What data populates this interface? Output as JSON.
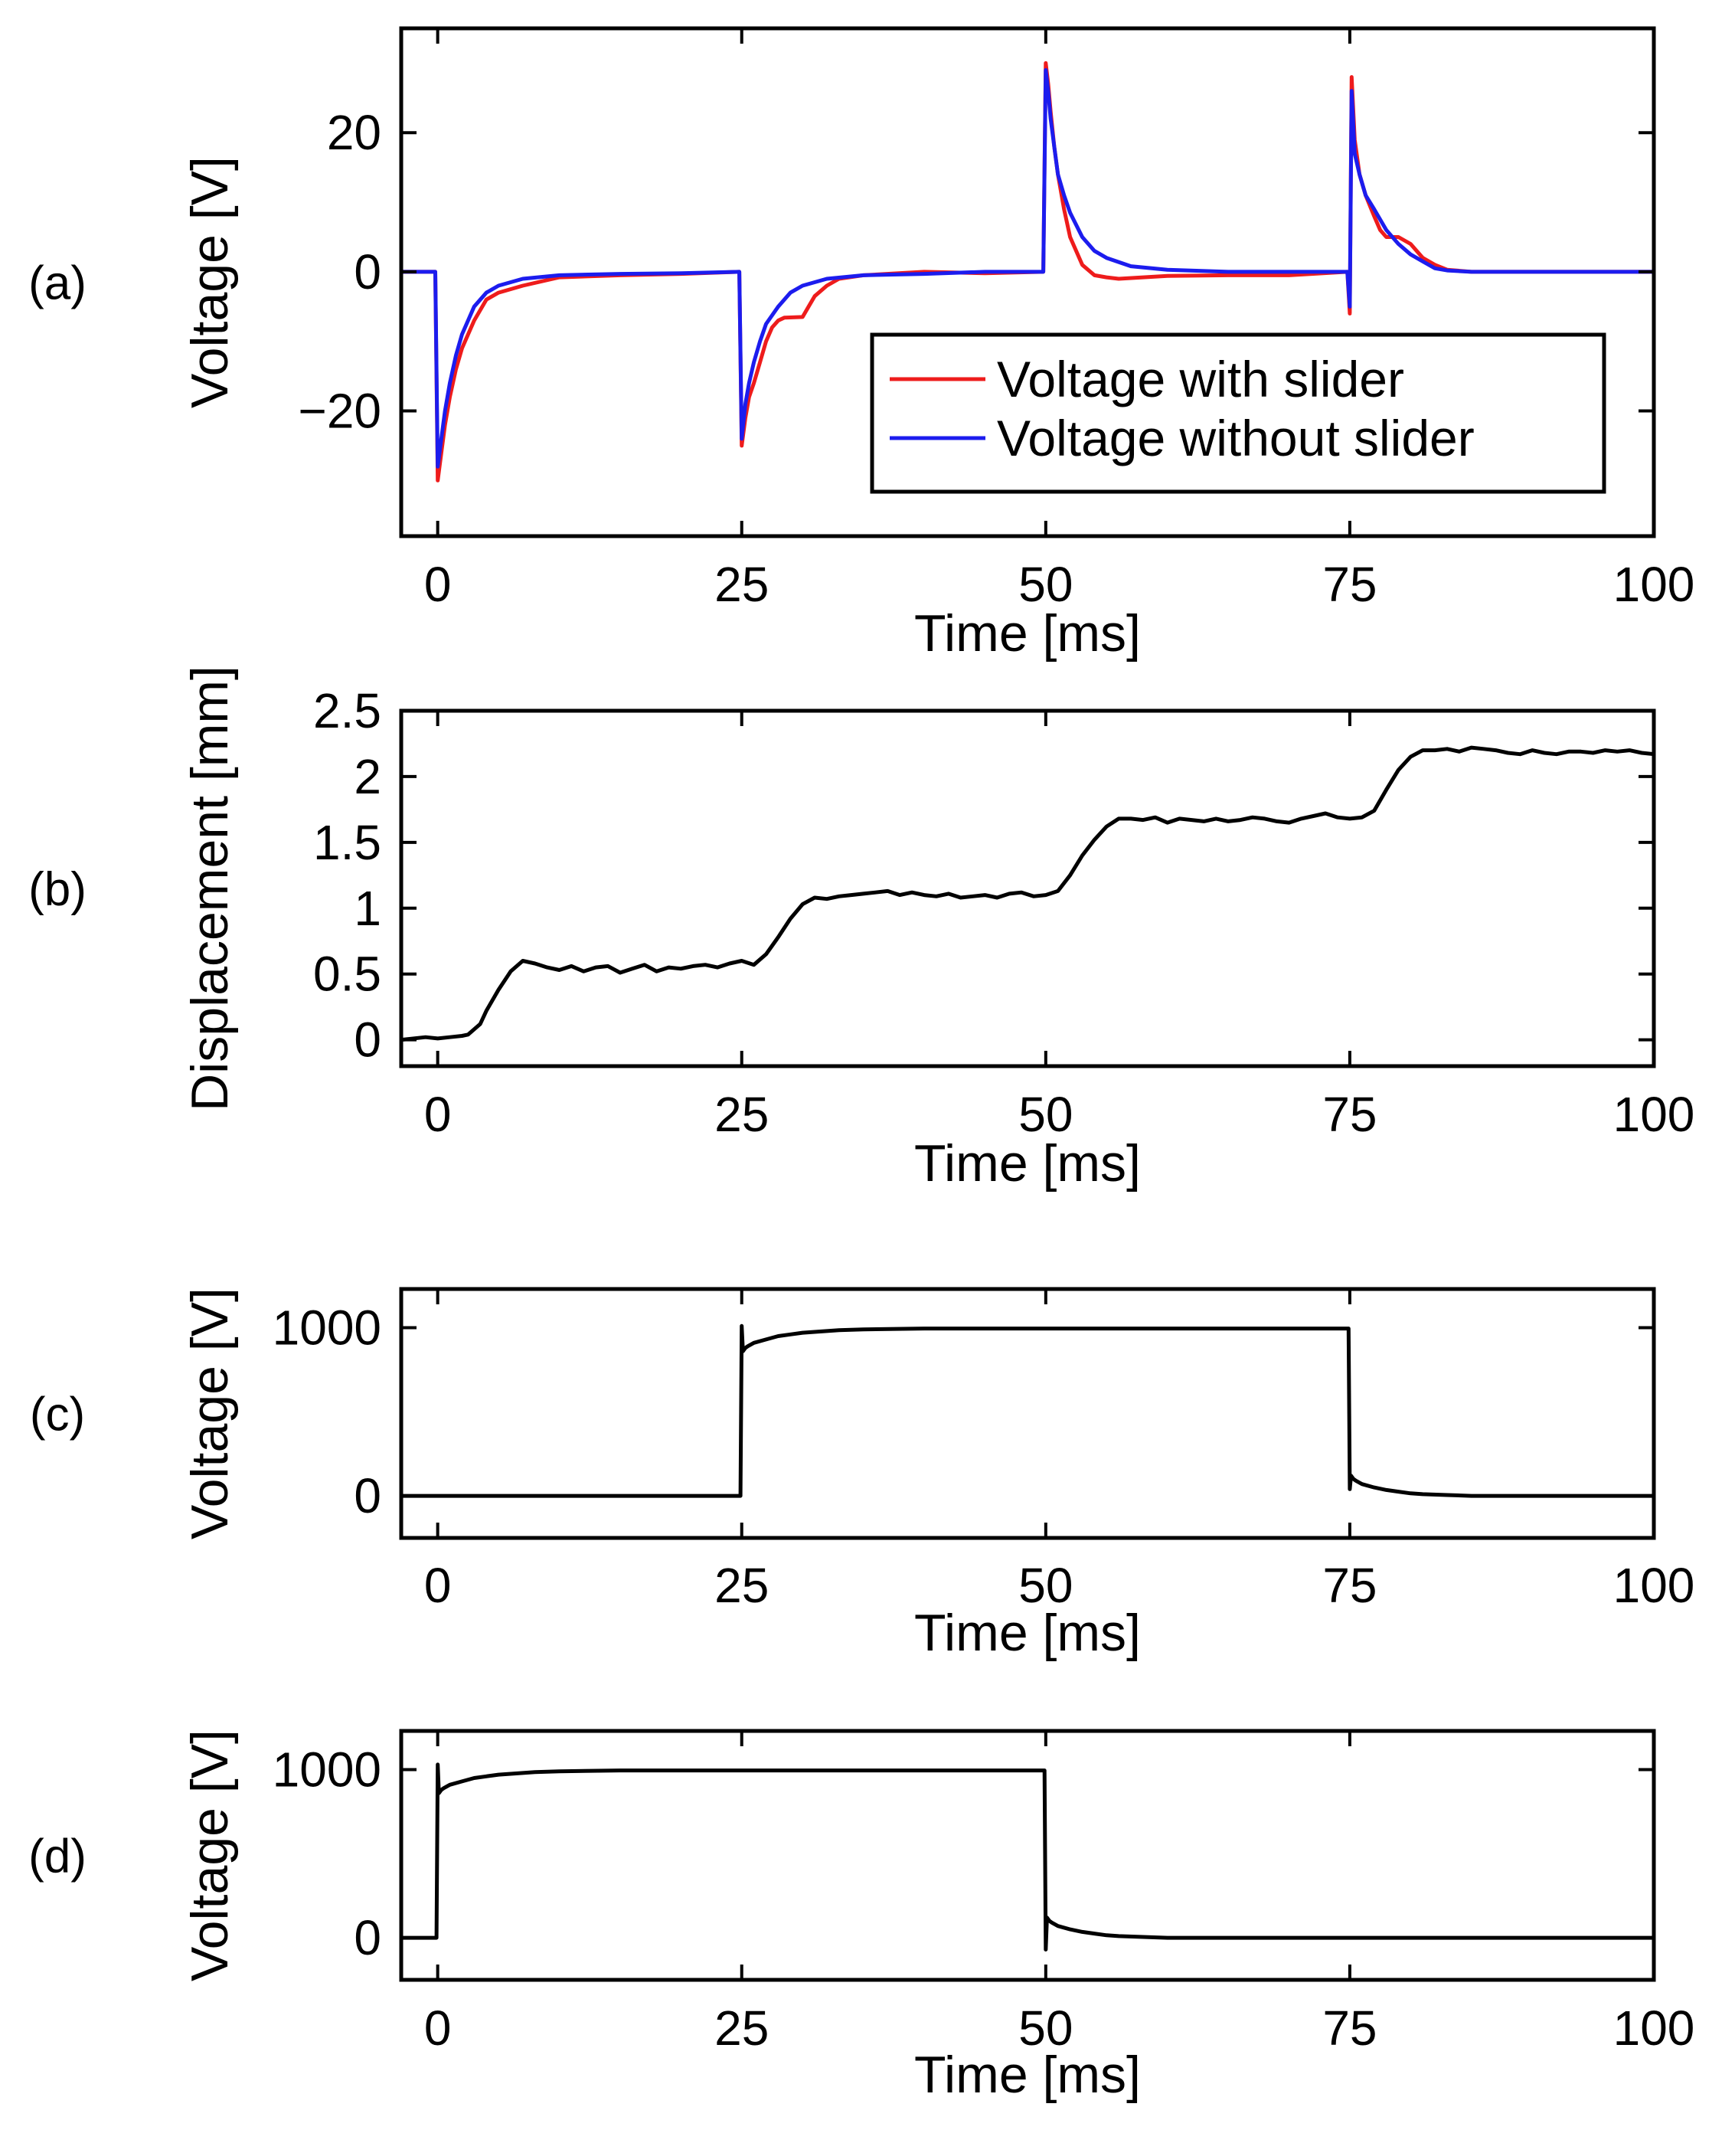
{
  "colors": {
    "with_slider": "#ee1c1c",
    "without_slider": "#1c1cee",
    "trace": "#000000"
  },
  "chart_data": [
    {
      "panel": "(a)",
      "type": "line",
      "xlabel": "Time [ms]",
      "ylabel": "Voltage [V]",
      "xlim": [
        -3,
        100
      ],
      "ylim": [
        -38,
        35
      ],
      "xticks": [
        0,
        25,
        50,
        75,
        100
      ],
      "yticks": [
        -20,
        0,
        20
      ],
      "ytick_labels": [
        "−20",
        "0",
        "20"
      ],
      "legend_position": "bottom-right",
      "series": [
        {
          "name": "Voltage with slider",
          "color_key": "with_slider",
          "x": [
            -3,
            -0.2,
            0,
            0.3,
            0.6,
            1,
            1.5,
            2,
            3,
            4,
            5,
            7,
            10,
            15,
            20,
            24.8,
            25,
            25.3,
            25.6,
            26,
            26.5,
            27,
            27.5,
            28,
            28.5,
            30,
            30.5,
            31,
            32,
            33,
            35,
            40,
            45,
            49.8,
            50,
            50.2,
            50.4,
            50.7,
            51,
            51.5,
            52,
            53,
            54,
            55,
            56,
            58,
            60,
            65,
            70,
            74.8,
            75,
            75.15,
            75.4,
            75.8,
            76.3,
            77,
            77.5,
            78,
            79,
            80,
            81,
            82,
            83,
            85,
            90,
            95,
            100
          ],
          "y": [
            0,
            0,
            -30,
            -26,
            -22,
            -18,
            -14,
            -11,
            -7,
            -4,
            -3,
            -2,
            -0.8,
            -0.5,
            -0.3,
            0,
            -25,
            -21,
            -18,
            -16,
            -13,
            -10,
            -8,
            -7,
            -6.6,
            -6.5,
            -5,
            -3.5,
            -2,
            -1,
            -0.5,
            0,
            -0.2,
            0,
            30,
            27,
            23,
            18,
            14,
            9,
            5,
            1,
            -0.5,
            -0.8,
            -1,
            -0.8,
            -0.6,
            -0.5,
            -0.5,
            0,
            -6,
            28,
            19,
            14,
            11,
            8,
            6,
            5,
            5,
            4,
            2,
            1,
            0.3,
            0,
            0,
            0,
            0
          ]
        },
        {
          "name": "Voltage without slider",
          "color_key": "without_slider",
          "x": [
            -3,
            -0.2,
            0,
            0.3,
            0.6,
            1,
            1.5,
            2,
            3,
            4,
            5,
            7,
            10,
            15,
            20,
            24.8,
            25,
            25.3,
            25.6,
            26,
            26.5,
            27,
            28,
            29,
            30,
            32,
            35,
            40,
            45,
            49.8,
            50,
            50.2,
            50.4,
            50.7,
            51,
            51.5,
            52,
            53,
            54,
            55,
            57,
            60,
            65,
            70,
            74.8,
            75,
            75.15,
            75.4,
            75.8,
            76.3,
            77,
            78,
            79,
            80,
            81,
            82,
            83,
            85,
            90,
            95,
            100
          ],
          "y": [
            0,
            0,
            -28,
            -24,
            -20,
            -16,
            -12,
            -9,
            -5,
            -3,
            -2,
            -1,
            -0.5,
            -0.3,
            -0.2,
            0,
            -24,
            -19,
            -16,
            -13,
            -10,
            -7.5,
            -5,
            -3,
            -2,
            -1,
            -0.5,
            -0.3,
            0,
            0,
            29,
            26,
            22,
            18,
            14,
            11,
            8.5,
            5,
            3,
            2,
            0.8,
            0.3,
            0,
            0,
            0,
            -5,
            26,
            17,
            14,
            11,
            9,
            6,
            4,
            2.5,
            1.5,
            0.5,
            0.2,
            0,
            0,
            0,
            0
          ]
        }
      ]
    },
    {
      "panel": "(b)",
      "type": "line",
      "xlabel": "Time [ms]",
      "ylabel": "Displacement [mm]",
      "xlim": [
        -3,
        100
      ],
      "ylim": [
        -0.2,
        2.5
      ],
      "xticks": [
        0,
        25,
        50,
        75,
        100
      ],
      "yticks": [
        0,
        0.5,
        1,
        1.5,
        2,
        2.5
      ],
      "ytick_labels": [
        "0",
        "0.5",
        "1",
        "1.5",
        "2",
        "2.5"
      ],
      "series": [
        {
          "name": "Displacement",
          "color_key": "trace",
          "x": [
            -3,
            -1,
            0,
            1,
            2,
            2.5,
            3,
            3.5,
            4,
            5,
            6,
            7,
            8,
            9,
            10,
            11,
            12,
            13,
            14,
            15,
            16,
            17,
            18,
            19,
            20,
            21,
            22,
            23,
            24,
            25,
            26,
            27,
            28,
            29,
            30,
            31,
            32,
            33,
            34,
            35,
            36,
            37,
            38,
            39,
            40,
            41,
            42,
            43,
            44,
            45,
            46,
            47,
            48,
            49,
            50,
            51,
            52,
            53,
            54,
            55,
            56,
            57,
            58,
            59,
            60,
            61,
            62,
            63,
            64,
            65,
            66,
            67,
            68,
            69,
            70,
            71,
            72,
            73,
            74,
            75,
            76,
            77,
            78,
            79,
            80,
            81,
            82,
            83,
            84,
            85,
            86,
            87,
            88,
            89,
            90,
            91,
            92,
            93,
            94,
            95,
            96,
            97,
            98,
            99,
            100
          ],
          "y": [
            0,
            0.02,
            0.01,
            0.02,
            0.03,
            0.04,
            0.08,
            0.12,
            0.22,
            0.38,
            0.52,
            0.6,
            0.58,
            0.55,
            0.53,
            0.56,
            0.52,
            0.55,
            0.56,
            0.51,
            0.54,
            0.57,
            0.52,
            0.55,
            0.54,
            0.56,
            0.57,
            0.55,
            0.58,
            0.6,
            0.57,
            0.65,
            0.78,
            0.92,
            1.03,
            1.08,
            1.07,
            1.09,
            1.1,
            1.11,
            1.12,
            1.13,
            1.1,
            1.12,
            1.1,
            1.09,
            1.11,
            1.08,
            1.09,
            1.1,
            1.08,
            1.11,
            1.12,
            1.09,
            1.1,
            1.13,
            1.25,
            1.4,
            1.52,
            1.62,
            1.68,
            1.68,
            1.67,
            1.69,
            1.65,
            1.68,
            1.67,
            1.66,
            1.68,
            1.66,
            1.67,
            1.69,
            1.68,
            1.66,
            1.65,
            1.68,
            1.7,
            1.72,
            1.69,
            1.68,
            1.69,
            1.74,
            1.9,
            2.05,
            2.15,
            2.2,
            2.2,
            2.21,
            2.19,
            2.22,
            2.21,
            2.2,
            2.18,
            2.17,
            2.2,
            2.18,
            2.17,
            2.19,
            2.19,
            2.18,
            2.2,
            2.19,
            2.2,
            2.18,
            2.17
          ]
        }
      ]
    },
    {
      "panel": "(c)",
      "type": "line",
      "xlabel": "Time [ms]",
      "ylabel": "Voltage [V]",
      "xlim": [
        -3,
        100
      ],
      "ylim": [
        -250,
        1230
      ],
      "xticks": [
        0,
        25,
        50,
        75,
        100
      ],
      "yticks": [
        0,
        1000
      ],
      "ytick_labels": [
        "0",
        "1000"
      ],
      "series": [
        {
          "name": "Voltage",
          "color_key": "trace",
          "x": [
            -3,
            24.9,
            25,
            25.1,
            25.3,
            25.5,
            26,
            27,
            28,
            29,
            30,
            31,
            33,
            35,
            40,
            50,
            60,
            70,
            74.9,
            75,
            75.1,
            75.3,
            75.5,
            76,
            77,
            78,
            79,
            80,
            81,
            83,
            85,
            90,
            100
          ],
          "y": [
            0,
            0,
            1010,
            860,
            880,
            890,
            910,
            930,
            950,
            960,
            970,
            975,
            985,
            990,
            995,
            995,
            995,
            995,
            995,
            40,
            120,
            100,
            90,
            70,
            50,
            35,
            25,
            15,
            10,
            5,
            0,
            0,
            0
          ]
        }
      ]
    },
    {
      "panel": "(d)",
      "type": "line",
      "xlabel": "Time [ms]",
      "ylabel": "Voltage [V]",
      "xlim": [
        -3,
        100
      ],
      "ylim": [
        -250,
        1230
      ],
      "xticks": [
        0,
        25,
        50,
        75,
        100
      ],
      "yticks": [
        0,
        1000
      ],
      "ytick_labels": [
        "0",
        "1000"
      ],
      "series": [
        {
          "name": "Voltage",
          "color_key": "trace",
          "x": [
            -3,
            -0.1,
            0,
            0.1,
            0.3,
            0.5,
            1,
            2,
            3,
            4,
            5,
            6,
            8,
            10,
            15,
            25,
            35,
            45,
            49.9,
            50,
            50.1,
            50.3,
            50.5,
            51,
            52,
            53,
            54,
            55,
            56,
            58,
            60,
            65,
            100
          ],
          "y": [
            0,
            0,
            1030,
            860,
            880,
            890,
            910,
            930,
            950,
            960,
            970,
            975,
            985,
            990,
            995,
            995,
            995,
            995,
            995,
            -70,
            120,
            100,
            90,
            70,
            50,
            35,
            25,
            15,
            10,
            5,
            0,
            0,
            0
          ]
        }
      ]
    }
  ],
  "panel_labels": [
    "(a)",
    "(b)",
    "(c)",
    "(d)"
  ]
}
